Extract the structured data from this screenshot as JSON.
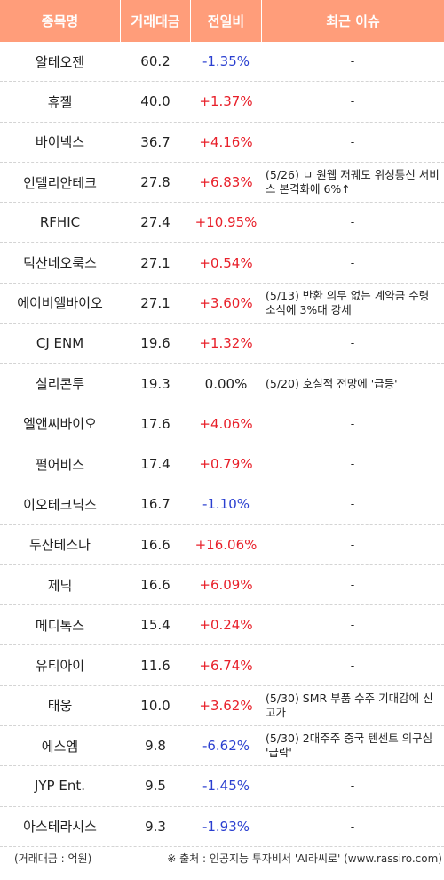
{
  "header": {
    "name": "종목명",
    "volume": "거래대금",
    "change": "전일비",
    "issue": "최근 이슈"
  },
  "colors": {
    "header_bg": "#ff9d7a",
    "up": "#e8202a",
    "down": "#2a3fd0",
    "flat": "#222222"
  },
  "rows": [
    {
      "name": "알테오젠",
      "volume": "60.2",
      "change": "-1.35%",
      "dir": "down",
      "issue": "-"
    },
    {
      "name": "휴젤",
      "volume": "40.0",
      "change": "+1.37%",
      "dir": "up",
      "issue": "-"
    },
    {
      "name": "바이넥스",
      "volume": "36.7",
      "change": "+4.16%",
      "dir": "up",
      "issue": "-"
    },
    {
      "name": "인텔리안테크",
      "volume": "27.8",
      "change": "+6.83%",
      "dir": "up",
      "issue": "(5/26) ㅁ 원웹 저궤도 위성통신 서비스 본격화에 6%↑"
    },
    {
      "name": "RFHIC",
      "volume": "27.4",
      "change": "+10.95%",
      "dir": "up",
      "issue": "-"
    },
    {
      "name": "덕산네오룩스",
      "volume": "27.1",
      "change": "+0.54%",
      "dir": "up",
      "issue": "-"
    },
    {
      "name": "에이비엘바이오",
      "volume": "27.1",
      "change": "+3.60%",
      "dir": "up",
      "issue": "(5/13) 반환 의무 없는 계약금 수령 소식에 3%대 강세"
    },
    {
      "name": "CJ ENM",
      "volume": "19.6",
      "change": "+1.32%",
      "dir": "up",
      "issue": "-"
    },
    {
      "name": "실리콘투",
      "volume": "19.3",
      "change": "0.00%",
      "dir": "flat",
      "issue": "(5/20) 호실적 전망에 '급등'"
    },
    {
      "name": "엘앤씨바이오",
      "volume": "17.6",
      "change": "+4.06%",
      "dir": "up",
      "issue": "-"
    },
    {
      "name": "펄어비스",
      "volume": "17.4",
      "change": "+0.79%",
      "dir": "up",
      "issue": "-"
    },
    {
      "name": "이오테크닉스",
      "volume": "16.7",
      "change": "-1.10%",
      "dir": "down",
      "issue": "-"
    },
    {
      "name": "두산테스나",
      "volume": "16.6",
      "change": "+16.06%",
      "dir": "up",
      "issue": "-"
    },
    {
      "name": "제닉",
      "volume": "16.6",
      "change": "+6.09%",
      "dir": "up",
      "issue": "-"
    },
    {
      "name": "메디톡스",
      "volume": "15.4",
      "change": "+0.24%",
      "dir": "up",
      "issue": "-"
    },
    {
      "name": "유티아이",
      "volume": "11.6",
      "change": "+6.74%",
      "dir": "up",
      "issue": "-"
    },
    {
      "name": "태웅",
      "volume": "10.0",
      "change": "+3.62%",
      "dir": "up",
      "issue": "(5/30) SMR 부품 수주 기대감에 신고가"
    },
    {
      "name": "에스엠",
      "volume": "9.8",
      "change": "-6.62%",
      "dir": "down",
      "issue": "(5/30) 2대주주 중국 텐센트 의구심 '급락'"
    },
    {
      "name": "JYP Ent.",
      "volume": "9.5",
      "change": "-1.45%",
      "dir": "down",
      "issue": "-"
    },
    {
      "name": "아스테라시스",
      "volume": "9.3",
      "change": "-1.93%",
      "dir": "down",
      "issue": "-"
    }
  ],
  "footer": {
    "unit": "(거래대금 : 억원)",
    "source": "※ 출처 : 인공지능 투자비서 'AI라씨로' (www.rassiro.com)"
  }
}
